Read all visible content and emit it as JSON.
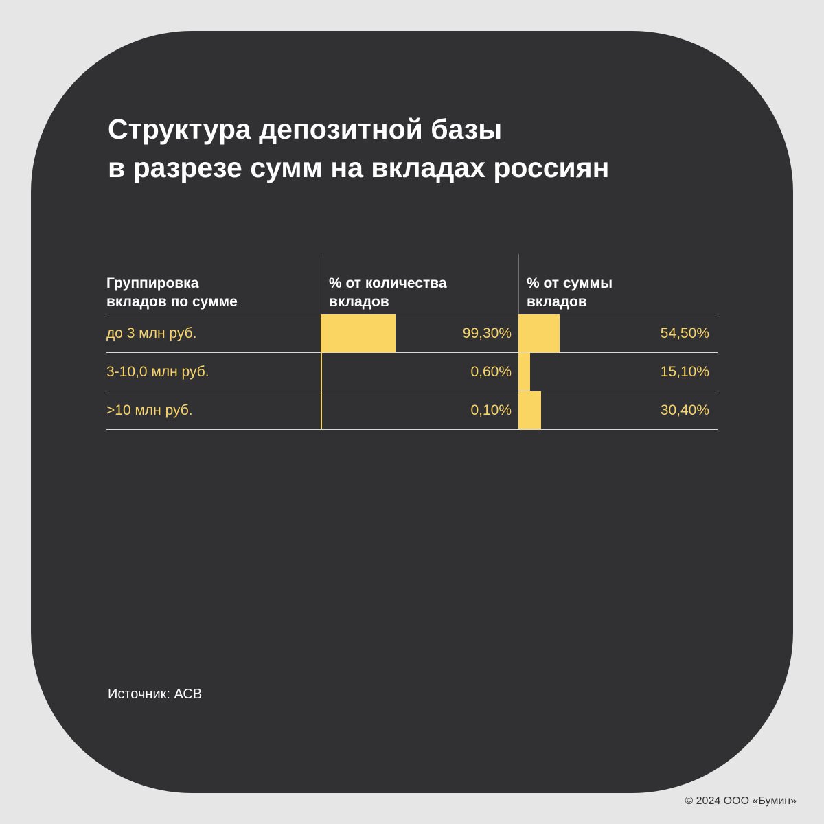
{
  "title": {
    "line1": "Структура депозитной базы",
    "line2": "в разрезе сумм на вкладах россиян"
  },
  "table": {
    "headers": [
      {
        "line1": "Группировка",
        "line2": "вкладов по сумме"
      },
      {
        "line1": "% от количества",
        "line2": "вкладов"
      },
      {
        "line1": "% от суммы",
        "line2": "вкладов"
      }
    ]
  },
  "chart_data": {
    "type": "table",
    "columns": [
      "Группировка вкладов по сумме",
      "% от количества вкладов",
      "% от суммы вкладов"
    ],
    "rows": [
      {
        "group": "до 3 млн руб.",
        "count_pct": 99.3,
        "count_label": "99,30%",
        "sum_pct": 54.5,
        "sum_label": "54,50%"
      },
      {
        "group": "3-10,0 млн руб.",
        "count_pct": 0.6,
        "count_label": "0,60%",
        "sum_pct": 15.1,
        "sum_label": "15,10%"
      },
      {
        "group": ">10 млн руб.",
        "count_pct": 0.1,
        "count_label": "0,10%",
        "sum_pct": 30.4,
        "sum_label": "30,40%"
      }
    ],
    "bar_color": "#fbd561"
  },
  "source": "Источник: АСВ",
  "copyright": "© 2024 ООО «Бумин»",
  "colors": {
    "background": "#e6e6e6",
    "card": "#313133",
    "accent": "#fbd561",
    "text": "#ffffff"
  }
}
